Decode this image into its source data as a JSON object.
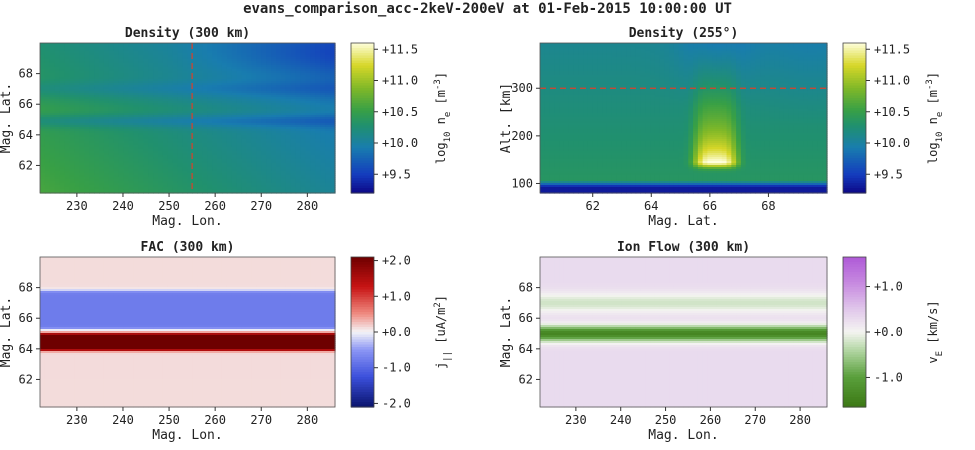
{
  "figure_title": "evans_comparison_acc-2keV-200eV at 01-Feb-2015 10:00:00 UT",
  "chart_data": [
    {
      "type": "heatmap",
      "title": "Density (300 km)",
      "xlabel": "Mag. Lon.",
      "ylabel": "Mag. Lat.",
      "xlim": [
        222,
        286
      ],
      "ylim": [
        60.2,
        70
      ],
      "xticks": [
        230,
        240,
        250,
        260,
        270,
        280
      ],
      "yticks": [
        62,
        64,
        66,
        68
      ],
      "colormap": "viridis-like",
      "colorbar": {
        "label": "log10 ne [m^-3]",
        "label_parts": [
          "log",
          "10",
          " n",
          "e",
          " [m",
          "-3",
          "]"
        ],
        "range": [
          9.2,
          11.6
        ],
        "ticks": [
          9.5,
          10.0,
          10.5,
          11.0,
          11.5
        ],
        "tick_labels": [
          "+9.5",
          "+10.0",
          "+10.5",
          "+11.0",
          "+11.5"
        ]
      },
      "marker_line": {
        "axis": "x",
        "value": 255,
        "color": "#d9412b",
        "style": "dashed"
      },
      "field": "density_latlon"
    },
    {
      "type": "heatmap",
      "title": "Density (255°)",
      "xlabel": "Mag. Lat.",
      "ylabel": "Alt. [km]",
      "xlim": [
        60.2,
        70
      ],
      "ylim": [
        80,
        395
      ],
      "xticks": [
        62,
        64,
        66,
        68
      ],
      "yticks": [
        100,
        200,
        300
      ],
      "colormap": "viridis-like",
      "colorbar": {
        "label": "log10 ne [m^-3]",
        "label_parts": [
          "log",
          "10",
          " n",
          "e",
          " [m",
          "-3",
          "]"
        ],
        "range": [
          9.2,
          11.6
        ],
        "ticks": [
          9.5,
          10.0,
          10.5,
          11.0,
          11.5
        ],
        "tick_labels": [
          "+9.5",
          "+10.0",
          "+10.5",
          "+11.0",
          "+11.5"
        ]
      },
      "marker_line": {
        "axis": "y",
        "value": 300,
        "color": "#d9412b",
        "style": "dashed"
      },
      "field": "density_altlat"
    },
    {
      "type": "heatmap",
      "title": "FAC (300 km)",
      "xlabel": "Mag. Lon.",
      "ylabel": "Mag. Lat.",
      "xlim": [
        222,
        286
      ],
      "ylim": [
        60.2,
        70
      ],
      "xticks": [
        230,
        240,
        250,
        260,
        270,
        280
      ],
      "yticks": [
        62,
        64,
        66,
        68
      ],
      "colormap": "blue-white-red",
      "colorbar": {
        "label": "j|| [uA/m^2]",
        "label_parts": [
          "j",
          "||",
          " [uA/m",
          "2",
          "]"
        ],
        "range": [
          -2.1,
          2.1
        ],
        "ticks": [
          -2.0,
          -1.0,
          0.0,
          1.0,
          2.0
        ],
        "tick_labels": [
          "-2.0",
          "-1.0",
          "+0.0",
          "+1.0",
          "+2.0"
        ]
      },
      "field": "fac"
    },
    {
      "type": "heatmap",
      "title": "Ion Flow (300 km)",
      "xlabel": "Mag. Lon.",
      "ylabel": "Mag. Lat.",
      "xlim": [
        222,
        286
      ],
      "ylim": [
        60.2,
        70
      ],
      "xticks": [
        230,
        240,
        250,
        260,
        270,
        280
      ],
      "yticks": [
        62,
        64,
        66,
        68
      ],
      "colormap": "green-white-purple",
      "colorbar": {
        "label": "vE [km/s]",
        "label_parts": [
          "v",
          "E",
          " [km/s]"
        ],
        "range": [
          -1.65,
          1.65
        ],
        "ticks": [
          -1.0,
          0.0,
          1.0
        ],
        "tick_labels": [
          "-1.0",
          "+0.0",
          "+1.0"
        ]
      },
      "field": "flow"
    }
  ]
}
